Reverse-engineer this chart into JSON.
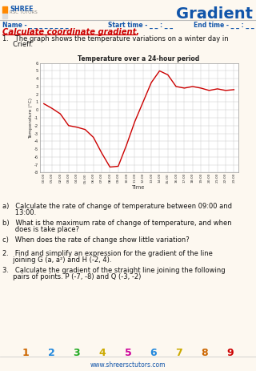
{
  "title": "Gradient",
  "name_line": "Name - _ _ _ _ _ _ _ _",
  "start_time": "Start time - _ _ : _ _",
  "end_time": "End time - _ _ : _ _",
  "section_title": "Calculate coordinate gradient.",
  "graph_title": "Temperature over a 24-hour period",
  "graph_ylabel": "Temperature (°C)",
  "graph_xlabel": "Time",
  "graph_yticks": [
    -8,
    -7,
    -6,
    -5,
    -4,
    -3,
    -2,
    -1,
    0,
    1,
    2,
    3,
    4,
    5,
    6
  ],
  "graph_xticks": [
    "00:00",
    "01:00",
    "02:00",
    "03:00",
    "04:00",
    "05:00",
    "06:00",
    "07:00",
    "08:00",
    "09:00",
    "10:00",
    "11:00",
    "12:00",
    "13:00",
    "14:00",
    "15:00",
    "16:00",
    "17:00",
    "18:00",
    "19:00",
    "20:00",
    "21:00",
    "22:00",
    "23:00"
  ],
  "temp_data_x": [
    0,
    1,
    2,
    3,
    4,
    5,
    6,
    7,
    8,
    9,
    10,
    11,
    12,
    13,
    14,
    15,
    16,
    17,
    18,
    19,
    20,
    21,
    22,
    23
  ],
  "temp_data_y": [
    0.8,
    0.2,
    -0.5,
    -2.0,
    -2.2,
    -2.5,
    -3.5,
    -5.5,
    -7.3,
    -7.2,
    -4.5,
    -1.5,
    1.0,
    3.5,
    5.0,
    4.5,
    3.0,
    2.8,
    3.0,
    2.8,
    2.5,
    2.7,
    2.5,
    2.6
  ],
  "line_color": "#cc0000",
  "footer_numbers": [
    "1",
    "2",
    "3",
    "4",
    "5",
    "6",
    "7",
    "8",
    "9"
  ],
  "footer_colors": [
    "#cc6600",
    "#2288dd",
    "#22aa22",
    "#ccaa00",
    "#cc0099",
    "#2288dd",
    "#ccaa00",
    "#cc6600",
    "#cc0000"
  ],
  "footer_url": "www.shreersctutors.com",
  "bg_color": "#fdf8f0",
  "header_line_color": "#bbbbbb",
  "section_title_color": "#cc0000",
  "header_title_color": "#1155aa",
  "name_color": "#1155aa",
  "body_text_color": "#111111",
  "grid_color": "#cccccc"
}
